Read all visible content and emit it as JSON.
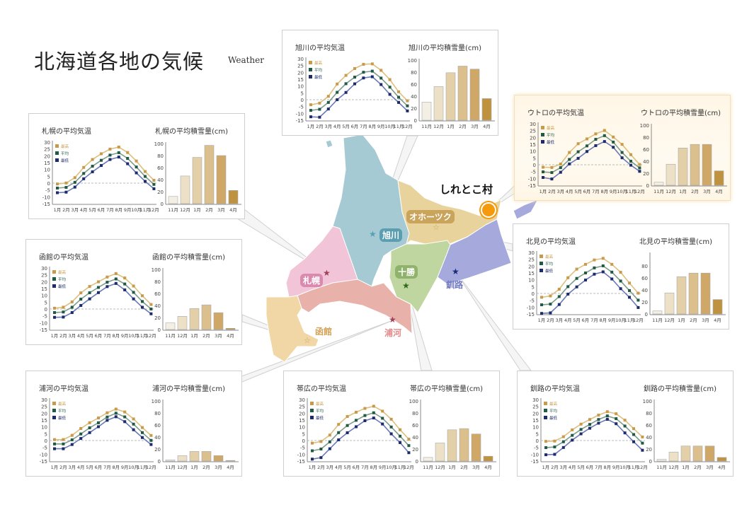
{
  "title": "北海道各地の気候",
  "subtitle": "Weather",
  "legend": [
    "最高",
    "平均",
    "最低"
  ],
  "months": [
    "1月",
    "2月",
    "3月",
    "4月",
    "5月",
    "6月",
    "7月",
    "8月",
    "9月",
    "10月",
    "11月",
    "12月"
  ],
  "snow_months": [
    "11月",
    "12月",
    "1月",
    "2月",
    "3月",
    "4月"
  ],
  "temp_ticks": [
    30,
    25,
    20,
    15,
    10,
    5,
    0,
    -5,
    -10,
    -15
  ],
  "colors": {
    "max_line": "#dcc080",
    "max_mark": "#c99a4a",
    "avg_line": "#7e9c8a",
    "avg_mark": "#1f5a44",
    "min_line": "#6c7ab8",
    "min_mark": "#1b2b6b",
    "bar_light": "#f4eee2",
    "bar_dark": "#bf9240"
  },
  "map": {
    "labels": {
      "asahikawa": "旭川",
      "okhotsk": "オホーツク",
      "sapporo": "札幌",
      "tokachi": "十勝",
      "kushiro": "釧路",
      "hakodate": "函館",
      "urakawa": "浦河"
    },
    "logo": "しれとこ村"
  },
  "panels": [
    {
      "id": "sapporo",
      "temp_title": "札幌の平均気温",
      "snow_title": "札幌の平均積雪量(cm)",
      "snow_ticks": [
        0,
        20,
        40,
        60,
        80,
        100
      ],
      "max": [
        -0.6,
        0.1,
        4,
        11.5,
        17.3,
        21.5,
        24.9,
        26.4,
        22.4,
        16.2,
        8.5,
        2.1
      ],
      "avg": [
        -3.6,
        -3.1,
        0.6,
        7.1,
        12.4,
        16.7,
        20.5,
        22.3,
        18.1,
        11.8,
        4.9,
        -0.9
      ],
      "min": [
        -7,
        -6.6,
        -2.9,
        3.2,
        8.3,
        12.9,
        17.3,
        19.1,
        14.2,
        7.5,
        1.3,
        -4.1
      ],
      "snow": [
        12,
        46,
        77,
        97,
        80,
        22
      ]
    },
    {
      "id": "asahikawa",
      "temp_title": "旭川の平均気温",
      "snow_title": "旭川の平均積雪量(cm)",
      "snow_ticks": [
        0,
        20,
        40,
        60,
        80,
        100
      ],
      "max": [
        -3.7,
        -2.5,
        2.5,
        11.5,
        17.8,
        22.8,
        25.9,
        26.2,
        21.5,
        14.7,
        5.8,
        -0.8
      ],
      "avg": [
        -7.8,
        -7,
        -2,
        5.4,
        11.7,
        16.5,
        20.1,
        20.9,
        15.8,
        9.2,
        1.8,
        -4.5
      ],
      "min": [
        -12.5,
        -12.8,
        -6.8,
        0,
        5.3,
        11.6,
        15.9,
        16.8,
        11.1,
        3.9,
        -2,
        -8.2
      ],
      "snow": [
        30,
        56,
        79,
        90,
        85,
        36
      ]
    },
    {
      "id": "utoro",
      "temp_title": "ウトロの平均気温",
      "snow_title": "ウトロの平均積雪量(cm)",
      "snow_ticks": [
        0,
        20,
        40,
        60,
        80,
        100
      ],
      "max": [
        -1.8,
        -2,
        0.5,
        9,
        15.4,
        18.9,
        22.6,
        25.1,
        20.3,
        14.9,
        7.4,
        0.2
      ],
      "avg": [
        -5.2,
        -5.7,
        -2.1,
        3.9,
        9.5,
        13.8,
        18.6,
        21.3,
        16.6,
        9,
        2.6,
        -2.3
      ],
      "min": [
        -9.3,
        -10.4,
        -5.5,
        0.6,
        4.7,
        9.7,
        14,
        17,
        12.8,
        5.1,
        -0.3,
        -4.8
      ],
      "snow": [
        5,
        35,
        62,
        68,
        68,
        24
      ]
    },
    {
      "id": "kitami",
      "temp_title": "北見の平均気温",
      "snow_title": "北見の平均積雪量(cm)",
      "snow_ticks": [
        0,
        20,
        40,
        60,
        80
      ],
      "max": [
        -2.8,
        -1.8,
        3.1,
        11.5,
        17.8,
        21.3,
        24.5,
        25.7,
        21.3,
        15.5,
        7.6,
        0.2
      ],
      "avg": [
        -8.3,
        -7.8,
        -2.3,
        5,
        11,
        15,
        18.7,
        20.2,
        15.6,
        9.1,
        2.1,
        -4.9
      ],
      "min": [
        -14.6,
        -14.2,
        -8.1,
        -0.5,
        4.8,
        9.8,
        14.1,
        15.8,
        10.6,
        3.5,
        -2.8,
        -10.3
      ],
      "snow": [
        5,
        35,
        62,
        68,
        68,
        24
      ]
    },
    {
      "id": "hakodate",
      "temp_title": "函館の平均気温",
      "snow_title": "函館の平均積雪量(cm)",
      "snow_ticks": [
        0,
        20,
        40,
        60,
        80,
        100
      ],
      "max": [
        0.6,
        1.3,
        5.2,
        11.8,
        16.5,
        19.9,
        23.4,
        25.9,
        22.7,
        16.8,
        9.7,
        3.3
      ],
      "avg": [
        -2.6,
        -2.2,
        1.3,
        7.2,
        11.9,
        15.8,
        19.6,
        22,
        18.3,
        12.2,
        5.5,
        0
      ],
      "min": [
        -6.1,
        -5.9,
        -2.6,
        2.6,
        7.4,
        12,
        16.4,
        18.7,
        14,
        7.4,
        1.3,
        -3.5
      ],
      "snow": [
        11,
        22,
        35,
        41,
        28,
        2
      ]
    },
    {
      "id": "urakawa",
      "temp_title": "浦河の平均気温",
      "snow_title": "浦河の平均積雪量(cm)",
      "snow_ticks": [
        0,
        20,
        40,
        60,
        80,
        100
      ],
      "max": [
        0.7,
        0.7,
        3.8,
        8.8,
        13,
        16.5,
        20.3,
        23,
        20.9,
        15.8,
        9.5,
        3.7
      ],
      "avg": [
        -2.5,
        -2.5,
        0.5,
        4.8,
        9.3,
        13,
        17.2,
        20,
        17.3,
        12,
        5.8,
        0.1
      ],
      "min": [
        -6,
        -6,
        -2.9,
        1.5,
        5.8,
        10.1,
        14.8,
        17.4,
        13.8,
        7.9,
        2.2,
        -2.9
      ],
      "snow": [
        2,
        9,
        16,
        16,
        9,
        1
      ]
    },
    {
      "id": "obihiro",
      "temp_title": "帯広の平均気温",
      "snow_title": "帯広の平均積雪量(cm)",
      "snow_ticks": [
        0,
        20,
        40,
        60,
        80,
        100
      ],
      "max": [
        -1.9,
        -0.7,
        4,
        11.8,
        17.6,
        20.7,
        23.5,
        25.1,
        21.5,
        15.6,
        7.9,
        1
      ],
      "avg": [
        -7.5,
        -6.2,
        -1,
        5.8,
        11,
        14.8,
        18.3,
        20.3,
        16.3,
        9.9,
        3.2,
        -3.7
      ],
      "min": [
        -13.6,
        -12.5,
        -6,
        0.5,
        5.7,
        10.1,
        14.5,
        16.5,
        12.1,
        4.9,
        -1.5,
        -8.9
      ],
      "snow": [
        6,
        30,
        52,
        54,
        45,
        8
      ]
    },
    {
      "id": "kushiro",
      "temp_title": "釧路の平均気温",
      "snow_title": "釧路の平均積雪量(cm)",
      "snow_ticks": [
        0,
        20,
        40,
        60,
        80,
        100
      ],
      "max": [
        -0.6,
        -0.4,
        2.8,
        7.8,
        12,
        15.4,
        18.6,
        21.1,
        19.6,
        14.9,
        8.7,
        2.6
      ],
      "avg": [
        -5.2,
        -4.7,
        -0.9,
        3.8,
        8.1,
        11.8,
        15.4,
        18,
        16,
        10.6,
        4.4,
        -1.9
      ],
      "min": [
        -10.4,
        -10.1,
        -5.1,
        0.3,
        4.9,
        9,
        12.7,
        15.5,
        12.3,
        5.6,
        -0.9,
        -7.1
      ],
      "snow": [
        3,
        15,
        25,
        25,
        25,
        6
      ]
    }
  ]
}
